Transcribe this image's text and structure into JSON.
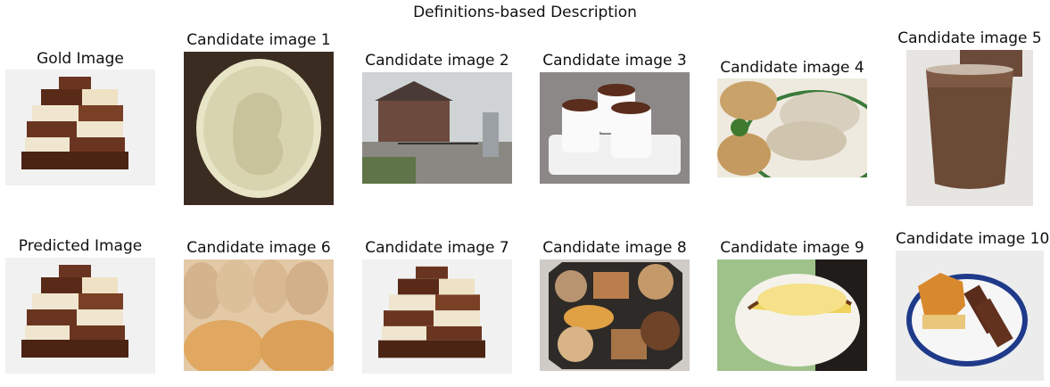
{
  "figure": {
    "title": "Definitions-based Description"
  },
  "panels": [
    {
      "caption": "Gold Image",
      "depicts": "chocolate-bars"
    },
    {
      "caption": "Candidate image 1",
      "depicts": "medallion-relief"
    },
    {
      "caption": "Candidate image 2",
      "depicts": "house-with-gate"
    },
    {
      "caption": "Candidate image 3",
      "depicts": "hot-chocolate-cups"
    },
    {
      "caption": "Candidate image 4",
      "depicts": "biscuits-and-gravy"
    },
    {
      "caption": "Candidate image 5",
      "depicts": "glass-of-chocolate-milk"
    },
    {
      "caption": "Predicted Image",
      "depicts": "chocolate-bars"
    },
    {
      "caption": "Candidate image 6",
      "depicts": "baked-biscuits"
    },
    {
      "caption": "Candidate image 7",
      "depicts": "chocolate-bars"
    },
    {
      "caption": "Candidate image 8",
      "depicts": "cookie-tin"
    },
    {
      "caption": "Candidate image 9",
      "depicts": "cheesecake"
    },
    {
      "caption": "Candidate image 10",
      "depicts": "biscuit-plate"
    }
  ]
}
